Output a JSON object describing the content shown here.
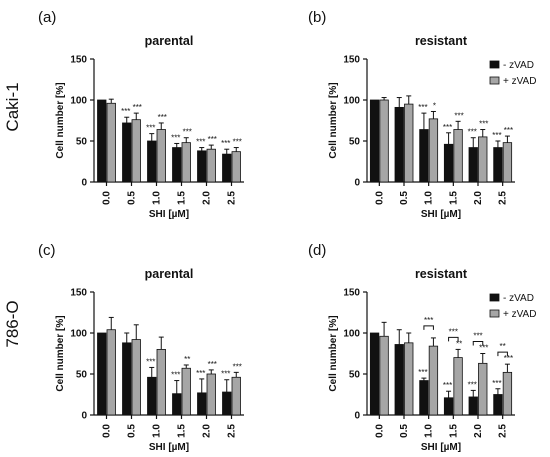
{
  "figure": {
    "row_labels": [
      "Caki-1",
      "786-O"
    ],
    "legend": {
      "minus": "- zVAD",
      "plus": "+ zVAD"
    }
  },
  "colors": {
    "minus": "#111111",
    "plus": "#a6a6a6",
    "axis": "#111111"
  },
  "chart_data": [
    {
      "panel": "(a)",
      "title": "parental",
      "type": "bar",
      "categories": [
        "0.0",
        "0.5",
        "1.0",
        "1.5",
        "2.0",
        "2.5"
      ],
      "xlabel": "SHI [µM]",
      "ylabel": "Cell number [%]",
      "ylim": [
        0,
        150
      ],
      "yticks": [
        "0",
        "50",
        "100",
        "150"
      ],
      "legend": false,
      "grid": false,
      "series": [
        {
          "name": "- zVAD",
          "values": [
            100,
            72,
            50,
            42,
            38,
            34
          ],
          "errors": [
            0,
            7,
            9,
            5,
            4,
            6
          ],
          "stars": [
            "",
            "***",
            "***",
            "***",
            "***",
            "***"
          ]
        },
        {
          "name": "+ zVAD",
          "values": [
            96,
            76,
            64,
            48,
            40,
            37
          ],
          "errors": [
            5,
            8,
            8,
            6,
            5,
            5
          ],
          "stars": [
            "",
            "***",
            "***",
            "***",
            "***",
            "***"
          ]
        }
      ],
      "brackets": []
    },
    {
      "panel": "(b)",
      "title": "resistant",
      "type": "bar",
      "categories": [
        "0.0",
        "0.5",
        "1.0",
        "1.5",
        "2.0",
        "2.5"
      ],
      "xlabel": "SHI [µM]",
      "ylabel": "Cell number [%]",
      "ylim": [
        0,
        150
      ],
      "yticks": [
        "0",
        "50",
        "100",
        "150"
      ],
      "legend": true,
      "legend_position": "top-right",
      "grid": false,
      "series": [
        {
          "name": "- zVAD",
          "values": [
            100,
            91,
            64,
            46,
            42,
            42
          ],
          "errors": [
            0,
            12,
            20,
            14,
            12,
            8
          ],
          "stars": [
            "",
            "",
            "***",
            "***",
            "***",
            "***"
          ]
        },
        {
          "name": "+ zVAD",
          "values": [
            100,
            95,
            77,
            64,
            55,
            48
          ],
          "errors": [
            3,
            10,
            9,
            10,
            9,
            8
          ],
          "stars": [
            "",
            "",
            "*",
            "***",
            "***",
            "***"
          ]
        }
      ],
      "brackets": []
    },
    {
      "panel": "(c)",
      "title": "parental",
      "type": "bar",
      "categories": [
        "0.0",
        "0.5",
        "1.0",
        "1.5",
        "2.0",
        "2.5"
      ],
      "xlabel": "SHI [µM]",
      "ylabel": "Cell number [%]",
      "ylim": [
        0,
        150
      ],
      "yticks": [
        "0",
        "50",
        "100",
        "150"
      ],
      "legend": false,
      "grid": false,
      "series": [
        {
          "name": "- zVAD",
          "values": [
            100,
            88,
            46,
            26,
            27,
            28
          ],
          "errors": [
            0,
            12,
            12,
            16,
            17,
            15
          ],
          "stars": [
            "",
            "",
            "***",
            "***",
            "***",
            "***"
          ]
        },
        {
          "name": "+ zVAD",
          "values": [
            104,
            92,
            80,
            57,
            50,
            46
          ],
          "errors": [
            15,
            18,
            15,
            4,
            5,
            6
          ],
          "stars": [
            "",
            "",
            "",
            "**",
            "***",
            "***"
          ]
        }
      ],
      "brackets": []
    },
    {
      "panel": "(d)",
      "title": "resistant",
      "type": "bar",
      "categories": [
        "0.0",
        "0.5",
        "1.0",
        "1.5",
        "2.0",
        "2.5"
      ],
      "xlabel": "SHI [µM]",
      "ylabel": "Cell number [%]",
      "ylim": [
        0,
        150
      ],
      "yticks": [
        "0",
        "50",
        "100",
        "150"
      ],
      "legend": true,
      "legend_position": "top-right",
      "grid": false,
      "series": [
        {
          "name": "- zVAD",
          "values": [
            100,
            86,
            42,
            21,
            22,
            25
          ],
          "errors": [
            0,
            18,
            3,
            8,
            8,
            7
          ],
          "stars": [
            "",
            "",
            "***",
            "***",
            "***",
            "***"
          ]
        },
        {
          "name": "+ zVAD",
          "values": [
            96,
            88,
            84,
            70,
            63,
            52
          ],
          "errors": [
            17,
            12,
            10,
            10,
            12,
            10
          ],
          "stars": [
            "",
            "",
            "",
            "**",
            "***",
            "***"
          ]
        }
      ],
      "brackets": [
        {
          "category": "1.0",
          "label": "***"
        },
        {
          "category": "1.5",
          "label": "***"
        },
        {
          "category": "2.0",
          "label": "***"
        },
        {
          "category": "2.5",
          "label": "**"
        }
      ]
    }
  ]
}
